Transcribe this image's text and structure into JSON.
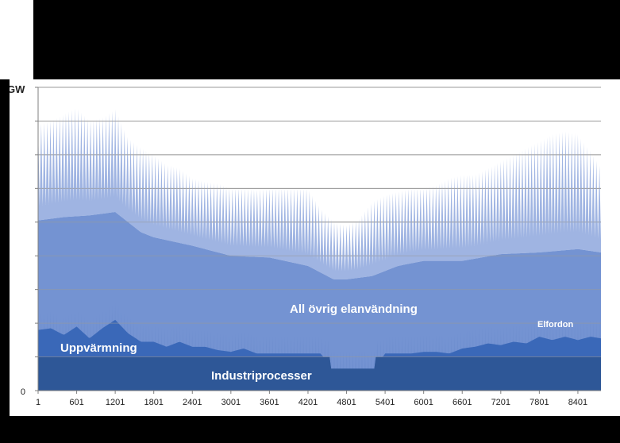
{
  "chart_data": {
    "type": "area",
    "stacked": true,
    "y_unit_label": "GW",
    "y_tick_labels": [
      "0"
    ],
    "x_range": [
      1,
      8760
    ],
    "x_ticks": [
      1,
      601,
      1201,
      1801,
      2401,
      3001,
      3601,
      4201,
      4801,
      5401,
      6001,
      6601,
      7201,
      7801,
      8401
    ],
    "y_range": [
      0,
      9
    ],
    "grid": true,
    "area_labels": {
      "industry": "Industriprocesser",
      "heating": "Uppvärmning",
      "other": "All övrig elanvändning",
      "ev": "Elfordon"
    },
    "colors": {
      "industry": "#2e5797",
      "heating": "#3a68b8",
      "ev": "#6f8fcf",
      "other_base": "#7493d2",
      "other_peak": "#9fb4e2",
      "grid": "#9a9a9a"
    },
    "industry": {
      "level": 1.0,
      "summer_dip": {
        "from": 4551,
        "to": 5251,
        "level": 0.65
      }
    },
    "heating_envelope": {
      "x": [
        1,
        201,
        401,
        601,
        801,
        1001,
        1201,
        1401,
        1601,
        1801,
        2001,
        2201,
        2401,
        2601,
        2801,
        3001,
        3201,
        3401,
        3601,
        3801,
        4001,
        4201,
        4401,
        4551,
        4801,
        5001,
        5251,
        5401,
        5601,
        5801,
        6001,
        6201,
        6401,
        6601,
        6801,
        7001,
        7201,
        7401,
        7601,
        7801,
        8001,
        8201,
        8401,
        8601,
        8760
      ],
      "y": [
        1.8,
        1.85,
        1.65,
        1.9,
        1.55,
        1.85,
        2.1,
        1.7,
        1.45,
        1.45,
        1.3,
        1.45,
        1.3,
        1.3,
        1.2,
        1.15,
        1.25,
        1.1,
        1.1,
        1.1,
        1.1,
        1.1,
        1.1,
        0.65,
        0.65,
        0.65,
        0.65,
        1.1,
        1.1,
        1.1,
        1.15,
        1.15,
        1.1,
        1.25,
        1.3,
        1.4,
        1.35,
        1.45,
        1.4,
        1.6,
        1.5,
        1.6,
        1.5,
        1.6,
        1.55
      ]
    },
    "ev_band": 0.5,
    "other_base": {
      "x": [
        1,
        401,
        801,
        1201,
        1601,
        1801,
        2401,
        3001,
        3601,
        4201,
        4601,
        4801,
        5201,
        5601,
        6001,
        6601,
        7201,
        7801,
        8401,
        8760
      ],
      "y": [
        5.05,
        5.15,
        5.2,
        5.3,
        4.7,
        4.55,
        4.3,
        4.0,
        3.95,
        3.7,
        3.3,
        3.3,
        3.4,
        3.7,
        3.85,
        3.85,
        4.05,
        4.1,
        4.2,
        4.1
      ]
    },
    "other_peak": {
      "x": [
        1,
        201,
        401,
        601,
        801,
        1001,
        1201,
        1401,
        1601,
        1801,
        2001,
        2201,
        2401,
        2601,
        2801,
        3001,
        3201,
        3401,
        3601,
        3801,
        4001,
        4201,
        4401,
        4601,
        4801,
        5001,
        5201,
        5401,
        5601,
        5801,
        6001,
        6201,
        6401,
        6601,
        6801,
        7001,
        7201,
        7401,
        7601,
        7801,
        8001,
        8201,
        8401,
        8601,
        8760
      ],
      "y": [
        7.9,
        8.0,
        8.2,
        8.4,
        8.0,
        8.1,
        8.35,
        7.5,
        7.2,
        7.0,
        6.7,
        6.6,
        6.3,
        6.2,
        6.15,
        6.0,
        6.0,
        5.95,
        6.0,
        6.0,
        6.0,
        6.0,
        5.4,
        5.0,
        4.9,
        5.1,
        5.6,
        5.8,
        5.9,
        6.0,
        6.0,
        6.1,
        6.3,
        6.4,
        6.4,
        6.6,
        6.8,
        7.0,
        7.2,
        7.4,
        7.6,
        7.7,
        7.6,
        7.1,
        6.6
      ]
    }
  }
}
